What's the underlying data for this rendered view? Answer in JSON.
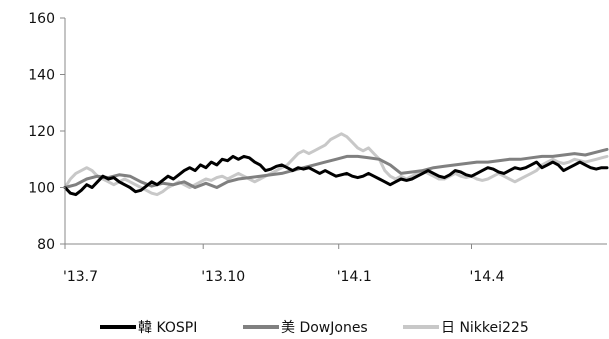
{
  "chart_data": {
    "type": "line",
    "title": "",
    "xlabel": "",
    "ylabel": "",
    "ylim": [
      80,
      160
    ],
    "yticks": [
      80,
      100,
      120,
      140,
      160
    ],
    "xlim": [
      0,
      100
    ],
    "xticks": [
      {
        "x": 0,
        "label": "'13.7"
      },
      {
        "x": 25.5,
        "label": "'13.10"
      },
      {
        "x": 50.5,
        "label": "'14.1"
      },
      {
        "x": 75,
        "label": "'14.4"
      }
    ],
    "grid": false,
    "legend_position": "bottom",
    "series": [
      {
        "name": "韓 KOSPI",
        "color": "#000000",
        "points": [
          [
            0,
            100
          ],
          [
            1,
            98
          ],
          [
            2,
            97.5
          ],
          [
            3,
            99
          ],
          [
            4,
            101
          ],
          [
            5,
            100
          ],
          [
            6,
            102
          ],
          [
            7,
            104
          ],
          [
            8,
            103
          ],
          [
            9,
            103.5
          ],
          [
            10,
            102
          ],
          [
            11,
            101
          ],
          [
            12,
            100
          ],
          [
            13,
            98.5
          ],
          [
            14,
            99
          ],
          [
            15,
            100.5
          ],
          [
            16,
            102
          ],
          [
            17,
            101
          ],
          [
            18,
            102.5
          ],
          [
            19,
            104
          ],
          [
            20,
            103
          ],
          [
            21,
            104.5
          ],
          [
            22,
            106
          ],
          [
            23,
            107
          ],
          [
            24,
            106
          ],
          [
            25,
            108
          ],
          [
            26,
            107
          ],
          [
            27,
            109
          ],
          [
            28,
            108
          ],
          [
            29,
            110
          ],
          [
            30,
            109.5
          ],
          [
            31,
            111
          ],
          [
            32,
            110
          ],
          [
            33,
            111
          ],
          [
            34,
            110.5
          ],
          [
            35,
            109
          ],
          [
            36,
            108
          ],
          [
            37,
            106
          ],
          [
            38,
            106.5
          ],
          [
            39,
            107.5
          ],
          [
            40,
            108
          ],
          [
            41,
            107
          ],
          [
            42,
            106
          ],
          [
            43,
            107
          ],
          [
            44,
            106.5
          ],
          [
            45,
            107
          ],
          [
            46,
            106
          ],
          [
            47,
            105
          ],
          [
            48,
            106
          ],
          [
            49,
            105
          ],
          [
            50,
            104
          ],
          [
            51,
            104.5
          ],
          [
            52,
            105
          ],
          [
            53,
            104
          ],
          [
            54,
            103.5
          ],
          [
            55,
            104
          ],
          [
            56,
            105
          ],
          [
            57,
            104
          ],
          [
            58,
            103
          ],
          [
            59,
            102
          ],
          [
            60,
            101
          ],
          [
            61,
            102
          ],
          [
            62,
            103
          ],
          [
            63,
            102.5
          ],
          [
            64,
            103
          ],
          [
            65,
            104
          ],
          [
            66,
            105
          ],
          [
            67,
            106
          ],
          [
            68,
            105
          ],
          [
            69,
            104
          ],
          [
            70,
            103.5
          ],
          [
            71,
            104.5
          ],
          [
            72,
            106
          ],
          [
            73,
            105.5
          ],
          [
            74,
            104.5
          ],
          [
            75,
            104
          ],
          [
            76,
            105
          ],
          [
            77,
            106
          ],
          [
            78,
            107
          ],
          [
            79,
            106.5
          ],
          [
            80,
            105.5
          ],
          [
            81,
            105
          ],
          [
            82,
            106
          ],
          [
            83,
            107
          ],
          [
            84,
            106.5
          ],
          [
            85,
            107
          ],
          [
            86,
            108
          ],
          [
            87,
            109
          ],
          [
            88,
            107
          ],
          [
            89,
            108
          ],
          [
            90,
            109
          ],
          [
            91,
            108
          ],
          [
            92,
            106
          ],
          [
            93,
            107
          ],
          [
            94,
            108
          ],
          [
            95,
            109
          ],
          [
            96,
            108
          ],
          [
            97,
            107
          ],
          [
            98,
            106.5
          ],
          [
            99,
            107
          ],
          [
            100,
            107
          ]
        ]
      },
      {
        "name": "美 DowJones",
        "color": "#808080",
        "points": [
          [
            0,
            100
          ],
          [
            2,
            101
          ],
          [
            4,
            103
          ],
          [
            6,
            104
          ],
          [
            8,
            103.5
          ],
          [
            10,
            104.5
          ],
          [
            12,
            104
          ],
          [
            14,
            102
          ],
          [
            16,
            100.5
          ],
          [
            18,
            101.5
          ],
          [
            20,
            101
          ],
          [
            22,
            102
          ],
          [
            24,
            100
          ],
          [
            26,
            101.5
          ],
          [
            28,
            100
          ],
          [
            30,
            102
          ],
          [
            32,
            103
          ],
          [
            34,
            103.5
          ],
          [
            36,
            104
          ],
          [
            38,
            104.5
          ],
          [
            40,
            105
          ],
          [
            42,
            106
          ],
          [
            44,
            107
          ],
          [
            46,
            108
          ],
          [
            48,
            109
          ],
          [
            50,
            110
          ],
          [
            52,
            111
          ],
          [
            54,
            111
          ],
          [
            56,
            110.5
          ],
          [
            58,
            110
          ],
          [
            60,
            108
          ],
          [
            62,
            105
          ],
          [
            64,
            105.5
          ],
          [
            66,
            106
          ],
          [
            68,
            107
          ],
          [
            70,
            107.5
          ],
          [
            72,
            108
          ],
          [
            74,
            108.5
          ],
          [
            76,
            109
          ],
          [
            78,
            109
          ],
          [
            80,
            109.5
          ],
          [
            82,
            110
          ],
          [
            84,
            110
          ],
          [
            86,
            110.5
          ],
          [
            88,
            111
          ],
          [
            90,
            111
          ],
          [
            92,
            111.5
          ],
          [
            94,
            112
          ],
          [
            96,
            111.5
          ],
          [
            98,
            112.5
          ],
          [
            100,
            113.5
          ]
        ]
      },
      {
        "name": "日 Nikkei225",
        "color": "#c8c8c8",
        "points": [
          [
            0,
            100
          ],
          [
            1,
            103
          ],
          [
            2,
            105
          ],
          [
            3,
            106
          ],
          [
            4,
            107
          ],
          [
            5,
            106
          ],
          [
            6,
            104
          ],
          [
            7,
            103
          ],
          [
            8,
            102
          ],
          [
            9,
            101
          ],
          [
            10,
            102
          ],
          [
            11,
            103
          ],
          [
            12,
            102
          ],
          [
            13,
            101
          ],
          [
            14,
            100
          ],
          [
            15,
            99
          ],
          [
            16,
            98
          ],
          [
            17,
            97.5
          ],
          [
            18,
            98.5
          ],
          [
            19,
            100
          ],
          [
            20,
            101
          ],
          [
            21,
            102
          ],
          [
            22,
            101
          ],
          [
            23,
            100
          ],
          [
            24,
            101
          ],
          [
            25,
            102
          ],
          [
            26,
            103
          ],
          [
            27,
            102.5
          ],
          [
            28,
            103.5
          ],
          [
            29,
            104
          ],
          [
            30,
            103
          ],
          [
            31,
            104
          ],
          [
            32,
            105
          ],
          [
            33,
            104
          ],
          [
            34,
            103
          ],
          [
            35,
            102
          ],
          [
            36,
            103
          ],
          [
            37,
            104
          ],
          [
            38,
            105
          ],
          [
            39,
            106
          ],
          [
            40,
            107
          ],
          [
            41,
            108
          ],
          [
            42,
            110
          ],
          [
            43,
            112
          ],
          [
            44,
            113
          ],
          [
            45,
            112
          ],
          [
            46,
            113
          ],
          [
            47,
            114
          ],
          [
            48,
            115
          ],
          [
            49,
            117
          ],
          [
            50,
            118
          ],
          [
            51,
            119
          ],
          [
            52,
            118
          ],
          [
            53,
            116
          ],
          [
            54,
            114
          ],
          [
            55,
            113
          ],
          [
            56,
            114
          ],
          [
            57,
            112
          ],
          [
            58,
            110
          ],
          [
            59,
            106
          ],
          [
            60,
            104
          ],
          [
            61,
            103
          ],
          [
            62,
            104
          ],
          [
            63,
            103
          ],
          [
            64,
            104
          ],
          [
            65,
            105
          ],
          [
            66,
            106
          ],
          [
            67,
            105
          ],
          [
            68,
            104
          ],
          [
            69,
            103
          ],
          [
            70,
            103
          ],
          [
            71,
            104
          ],
          [
            72,
            105
          ],
          [
            73,
            104
          ],
          [
            74,
            103.5
          ],
          [
            75,
            104
          ],
          [
            76,
            103
          ],
          [
            77,
            102.5
          ],
          [
            78,
            103
          ],
          [
            79,
            104
          ],
          [
            80,
            105
          ],
          [
            81,
            104
          ],
          [
            82,
            103
          ],
          [
            83,
            102
          ],
          [
            84,
            103
          ],
          [
            85,
            104
          ],
          [
            86,
            105
          ],
          [
            87,
            106
          ],
          [
            88,
            108
          ],
          [
            89,
            109
          ],
          [
            90,
            110
          ],
          [
            91,
            109
          ],
          [
            92,
            108.5
          ],
          [
            93,
            109
          ],
          [
            94,
            110
          ],
          [
            95,
            109.5
          ],
          [
            96,
            109
          ],
          [
            97,
            109.5
          ],
          [
            98,
            110
          ],
          [
            99,
            110.5
          ],
          [
            100,
            111
          ]
        ]
      }
    ]
  }
}
